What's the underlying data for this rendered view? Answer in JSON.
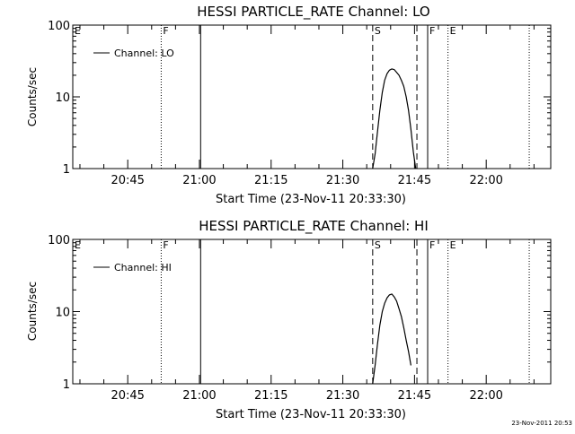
{
  "timestamp": "23-Nov-2011 20:53",
  "chart_data": [
    {
      "type": "line",
      "title": "HESSI PARTICLE_RATE Channel: LO",
      "xlabel": "Start Time (23-Nov-11 20:33:30)",
      "ylabel": "Counts/sec",
      "yscale": "log",
      "xlim": [
        "20:33:30",
        "22:13:30"
      ],
      "ylim": [
        1,
        100
      ],
      "x_ticks": [
        "20:45",
        "21:00",
        "21:15",
        "21:30",
        "21:45",
        "22:00"
      ],
      "y_ticks": [
        "1",
        "10",
        "100"
      ],
      "legend": {
        "position": "top-left",
        "label": "Channel: LO"
      },
      "markers": [
        {
          "time": "20:33:30",
          "label": "E",
          "style": "dotted"
        },
        {
          "time": "20:52:00",
          "label": "F",
          "style": "dotted"
        },
        {
          "time": "21:00:15",
          "label": "",
          "style": "solid"
        },
        {
          "time": "21:36:15",
          "label": "S",
          "style": "dashed"
        },
        {
          "time": "21:45:30",
          "label": "",
          "style": "dashed"
        },
        {
          "time": "21:47:45",
          "label": "F",
          "style": "solid"
        },
        {
          "time": "21:52:00",
          "label": "E",
          "style": "dotted"
        },
        {
          "time": "22:09:00",
          "label": "",
          "style": "dotted"
        }
      ],
      "series": [
        {
          "name": "Channel: LO",
          "x": [
            "21:36:15",
            "21:36:45",
            "21:37:15",
            "21:37:45",
            "21:38:15",
            "21:38:45",
            "21:39:15",
            "21:39:45",
            "21:40:15",
            "21:40:45",
            "21:41:15",
            "21:41:45",
            "21:42:15",
            "21:42:45",
            "21:43:15",
            "21:43:45",
            "21:44:15",
            "21:44:45",
            "21:45:15"
          ],
          "values": [
            1,
            1.6,
            3.2,
            6.5,
            11.5,
            17,
            21,
            23.5,
            24.5,
            24,
            22,
            20,
            17,
            14,
            10,
            6.5,
            3.5,
            1.7,
            1
          ]
        }
      ]
    },
    {
      "type": "line",
      "title": "HESSI PARTICLE_RATE Channel: HI",
      "xlabel": "Start Time (23-Nov-11 20:33:30)",
      "ylabel": "Counts/sec",
      "yscale": "log",
      "xlim": [
        "20:33:30",
        "22:13:30"
      ],
      "ylim": [
        1,
        100
      ],
      "x_ticks": [
        "20:45",
        "21:00",
        "21:15",
        "21:30",
        "21:45",
        "22:00"
      ],
      "y_ticks": [
        "1",
        "10",
        "100"
      ],
      "legend": {
        "position": "top-left",
        "label": "Channel: HI"
      },
      "markers": [
        {
          "time": "20:33:30",
          "label": "E",
          "style": "dotted"
        },
        {
          "time": "20:52:00",
          "label": "F",
          "style": "dotted"
        },
        {
          "time": "21:00:15",
          "label": "",
          "style": "solid"
        },
        {
          "time": "21:36:15",
          "label": "S",
          "style": "dashed"
        },
        {
          "time": "21:45:30",
          "label": "",
          "style": "dashed"
        },
        {
          "time": "21:47:45",
          "label": "F",
          "style": "solid"
        },
        {
          "time": "21:52:00",
          "label": "E",
          "style": "dotted"
        },
        {
          "time": "22:09:00",
          "label": "",
          "style": "dotted"
        }
      ],
      "series": [
        {
          "name": "Channel: HI",
          "x": [
            "21:36:15",
            "21:36:45",
            "21:37:15",
            "21:37:45",
            "21:38:15",
            "21:38:45",
            "21:39:15",
            "21:39:45",
            "21:40:15",
            "21:40:45",
            "21:41:15",
            "21:41:45",
            "21:42:15",
            "21:42:45",
            "21:43:15",
            "21:43:45",
            "21:44:15"
          ],
          "values": [
            1,
            1.8,
            3.5,
            6.5,
            10,
            13,
            15.5,
            17,
            17.5,
            16,
            14,
            11,
            8.5,
            6,
            4,
            2.8,
            1.8
          ]
        }
      ]
    }
  ]
}
